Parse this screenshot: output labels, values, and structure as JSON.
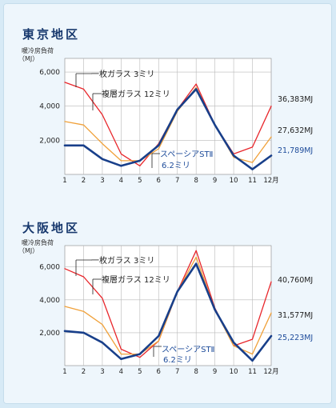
{
  "panels": [
    {
      "title": "東京地区",
      "ylabel_line1": "暖冷房負荷",
      "ylabel_line2": "（MJ）",
      "annotations": {
        "single": "一枚ガラス 3ミリ",
        "double": "複層ガラス 12ミリ",
        "st_line1": "スペーシアSTⅡ",
        "st_line2": "6.2ミリ"
      },
      "totals": [
        "36,383MJ",
        "27,632MJ",
        "21,789MJ"
      ]
    },
    {
      "title": "大阪地区",
      "ylabel_line1": "暖冷房負荷",
      "ylabel_line2": "（MJ）",
      "annotations": {
        "single": "一枚ガラス 3ミリ",
        "double": "複層ガラス 12ミリ",
        "st_line1": "スペーシアSTⅡ",
        "st_line2": "6.2ミリ"
      },
      "totals": [
        "40,760MJ",
        "31,577MJ",
        "25,223MJ"
      ]
    }
  ],
  "colors": {
    "single": "#e8262b",
    "double": "#f0a13a",
    "st": "#183f8a",
    "grid": "#b9b9b9",
    "frame_bg": "#eef6fc",
    "plot_bg": "#ffffff",
    "title": "#17386d"
  },
  "chart_data": [
    {
      "type": "line",
      "title": "東京地区",
      "ylabel": "暖冷房負荷（MJ）",
      "x": [
        "1",
        "2",
        "3",
        "4",
        "5",
        "6",
        "7",
        "8",
        "9",
        "10",
        "11",
        "12月"
      ],
      "yticks": [
        2000,
        4000,
        6000
      ],
      "ytick_labels": [
        "2,000",
        "4,000",
        "6,000"
      ],
      "ylim": [
        0,
        6800
      ],
      "grid": true,
      "series": [
        {
          "name": "一枚ガラス 3ミリ",
          "total": "36,383MJ",
          "values": [
            5400,
            5000,
            3500,
            1200,
            500,
            1800,
            3800,
            5300,
            2900,
            1200,
            1600,
            4000
          ]
        },
        {
          "name": "複層ガラス 12ミリ",
          "total": "27,632MJ",
          "values": [
            3100,
            2900,
            1800,
            800,
            800,
            1500,
            3700,
            5100,
            2900,
            1000,
            700,
            2200
          ]
        },
        {
          "name": "スペーシアSTⅡ 6.2ミリ",
          "total": "21,789MJ",
          "values": [
            1700,
            1700,
            900,
            500,
            800,
            1700,
            3800,
            5000,
            2900,
            1100,
            300,
            1100
          ]
        }
      ]
    },
    {
      "type": "line",
      "title": "大阪地区",
      "ylabel": "暖冷房負荷（MJ）",
      "x": [
        "1",
        "2",
        "3",
        "4",
        "5",
        "6",
        "7",
        "8",
        "9",
        "10",
        "11",
        "12月"
      ],
      "yticks": [
        2000,
        4000,
        6000
      ],
      "ytick_labels": [
        "2,000",
        "4,000",
        "6,000"
      ],
      "ylim": [
        0,
        7300
      ],
      "grid": true,
      "series": [
        {
          "name": "一枚ガラス 3ミリ",
          "total": "40,760MJ",
          "values": [
            5900,
            5400,
            4100,
            1000,
            500,
            1500,
            4500,
            7000,
            3500,
            1200,
            1600,
            5100
          ]
        },
        {
          "name": "複層ガラス 12ミリ",
          "total": "31,577MJ",
          "values": [
            3600,
            3300,
            2500,
            700,
            700,
            1500,
            4500,
            6600,
            3400,
            1200,
            700,
            3200
          ]
        },
        {
          "name": "スペーシアSTⅡ 6.2ミリ",
          "total": "25,223MJ",
          "values": [
            2100,
            2000,
            1400,
            400,
            700,
            1800,
            4500,
            6200,
            3400,
            1400,
            300,
            1800
          ]
        }
      ]
    }
  ]
}
